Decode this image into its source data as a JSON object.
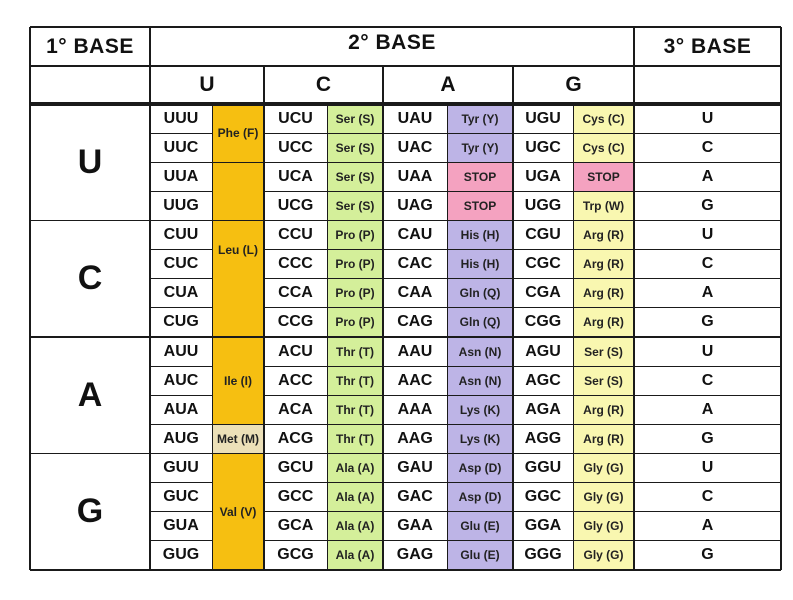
{
  "header": {
    "first_base": "1°  BASE",
    "second_base": "2°  BASE",
    "third_base": "3°  BASE",
    "second_letters": [
      "U",
      "C",
      "A",
      "G"
    ]
  },
  "first_letters": [
    "U",
    "C",
    "A",
    "G"
  ],
  "third_letters": [
    "U",
    "C",
    "A",
    "G"
  ],
  "colors": {
    "orange": "#f6bf11",
    "green": "#d4ef9a",
    "purple": "#bdb4e6",
    "yellow": "#f9f7b0",
    "pink": "#f4a2c0",
    "met": "#ece0b8"
  },
  "rows": [
    {
      "codons": [
        "UUU",
        "UCU",
        "UAU",
        "UGU"
      ],
      "aa": [
        "Ser (S)",
        "Tyr (Y)",
        "Cys (C)"
      ]
    },
    {
      "codons": [
        "UUC",
        "UCC",
        "UAC",
        "UGC"
      ],
      "aa": [
        "Ser (S)",
        "Tyr (Y)",
        "Cys (C)"
      ]
    },
    {
      "codons": [
        "UUA",
        "UCA",
        "UAA",
        "UGA"
      ],
      "aa": [
        "Ser (S)",
        "STOP",
        "STOP"
      ]
    },
    {
      "codons": [
        "UUG",
        "UCG",
        "UAG",
        "UGG"
      ],
      "aa": [
        "Ser (S)",
        "STOP",
        "Trp (W)"
      ]
    },
    {
      "codons": [
        "CUU",
        "CCU",
        "CAU",
        "CGU"
      ],
      "aa": [
        "Pro (P)",
        "His (H)",
        "Arg (R)"
      ]
    },
    {
      "codons": [
        "CUC",
        "CCC",
        "CAC",
        "CGC"
      ],
      "aa": [
        "Pro (P)",
        "His (H)",
        "Arg (R)"
      ]
    },
    {
      "codons": [
        "CUA",
        "CCA",
        "CAA",
        "CGA"
      ],
      "aa": [
        "Pro (P)",
        "Gln (Q)",
        "Arg (R)"
      ]
    },
    {
      "codons": [
        "CUG",
        "CCG",
        "CAG",
        "CGG"
      ],
      "aa": [
        "Pro (P)",
        "Gln (Q)",
        "Arg (R)"
      ]
    },
    {
      "codons": [
        "AUU",
        "ACU",
        "AAU",
        "AGU"
      ],
      "aa": [
        "Thr (T)",
        "Asn (N)",
        "Ser (S)"
      ]
    },
    {
      "codons": [
        "AUC",
        "ACC",
        "AAC",
        "AGC"
      ],
      "aa": [
        "Thr (T)",
        "Asn (N)",
        "Ser (S)"
      ]
    },
    {
      "codons": [
        "AUA",
        "ACA",
        "AAA",
        "AGA"
      ],
      "aa": [
        "Thr (T)",
        "Lys (K)",
        "Arg (R)"
      ]
    },
    {
      "codons": [
        "AUG",
        "ACG",
        "AAG",
        "AGG"
      ],
      "aa": [
        "Thr (T)",
        "Lys (K)",
        "Arg (R)"
      ]
    },
    {
      "codons": [
        "GUU",
        "GCU",
        "GAU",
        "GGU"
      ],
      "aa": [
        "Ala (A)",
        "Asp (D)",
        "Gly (G)"
      ]
    },
    {
      "codons": [
        "GUC",
        "GCC",
        "GAC",
        "GGC"
      ],
      "aa": [
        "Ala (A)",
        "Asp (D)",
        "Gly (G)"
      ]
    },
    {
      "codons": [
        "GUA",
        "GCA",
        "GAA",
        "GGA"
      ],
      "aa": [
        "Ala (A)",
        "Glu (E)",
        "Gly (G)"
      ]
    },
    {
      "codons": [
        "GUG",
        "GCG",
        "GAG",
        "GGG"
      ],
      "aa": [
        "Ala (A)",
        "Glu (E)",
        "Gly (G)"
      ]
    }
  ],
  "u_column_groups": [
    {
      "label": "Phe (F)",
      "rows": 2
    },
    {
      "label": "Leu (L)",
      "rows": 6
    },
    {
      "label": "Ile (I)",
      "rows": 3
    },
    {
      "label": "Met (M)",
      "rows": 1
    },
    {
      "label": "Val (V)",
      "rows": 4
    }
  ]
}
